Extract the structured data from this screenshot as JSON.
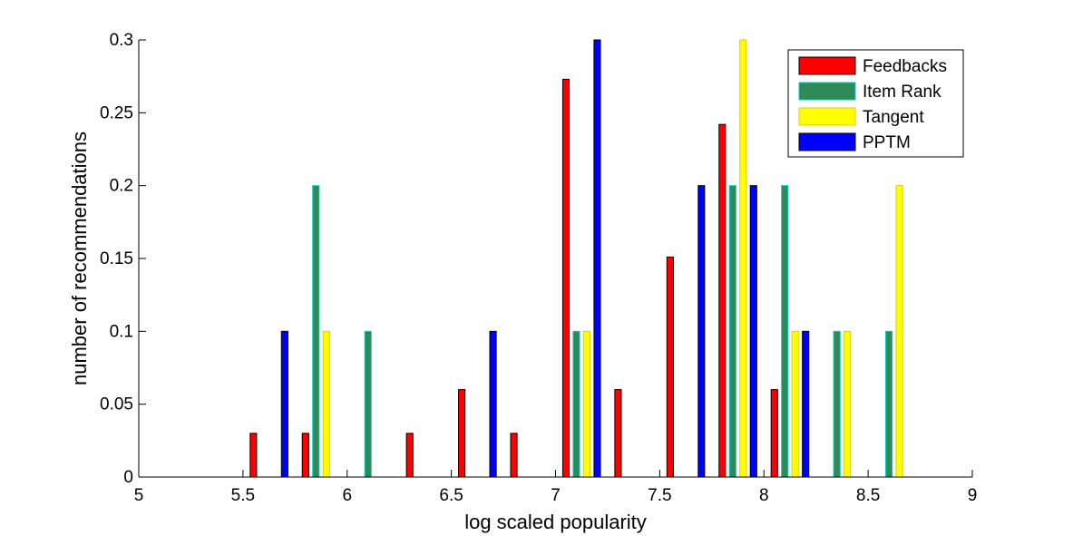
{
  "chart_data": {
    "type": "bar",
    "xlabel": "log scaled popularity",
    "ylabel": "number of recommendations",
    "xlim": [
      5,
      9
    ],
    "ylim": [
      0,
      0.3
    ],
    "xticks": [
      "5",
      "5.5",
      "6",
      "6.5",
      "7",
      "7.5",
      "8",
      "8.5",
      "9"
    ],
    "yticks": [
      "0",
      "0.05",
      "0.1",
      "0.15",
      "0.2",
      "0.25",
      "0.3"
    ],
    "grid": false,
    "legend_position": "top-right",
    "bin_centers": [
      5.125,
      5.375,
      5.625,
      5.875,
      6.125,
      6.375,
      6.625,
      6.875,
      7.125,
      7.375,
      7.625,
      7.875,
      8.125,
      8.375,
      8.625,
      8.875
    ],
    "series": [
      {
        "name": "Feedbacks",
        "color": "#ff0000",
        "edge": "#000000",
        "values": [
          0,
          0,
          0.03,
          0.03,
          0,
          0.03,
          0.06,
          0.03,
          0.273,
          0.06,
          0.151,
          0.242,
          0.06,
          0,
          0,
          0
        ]
      },
      {
        "name": "Item Rank",
        "color": "#2e8b57",
        "edge": "#00cccc",
        "values": [
          0,
          0,
          0,
          0.2,
          0.1,
          0,
          0,
          0,
          0.1,
          0,
          0,
          0.2,
          0.2,
          0.1,
          0.1,
          0
        ]
      },
      {
        "name": "Tangent",
        "color": "#ffff00",
        "edge": "#e6c800",
        "values": [
          0,
          0,
          0,
          0.1,
          0,
          0,
          0,
          0,
          0.1,
          0,
          0,
          0.3,
          0.1,
          0.1,
          0.2,
          0
        ]
      },
      {
        "name": "PPTM",
        "color": "#0000ff",
        "edge": "#000000",
        "values": [
          0,
          0,
          0.1,
          0,
          0,
          0,
          0.1,
          0,
          0.3,
          0,
          0.2,
          0.2,
          0.1,
          0,
          0,
          0
        ]
      }
    ]
  }
}
